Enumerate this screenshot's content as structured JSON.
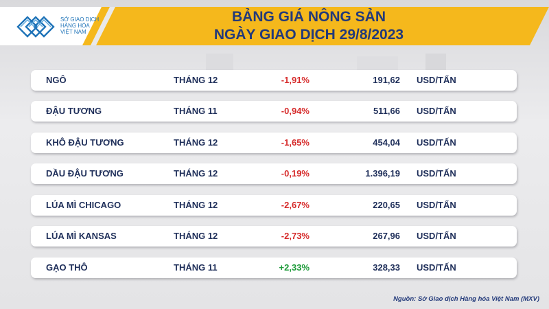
{
  "header": {
    "title_line1": "BẢNG GIÁ NÔNG SẢN",
    "title_line2": "NGÀY GIAO DỊCH 29/8/2023",
    "banner_color": "#f5b81c",
    "title_color": "#233a7a"
  },
  "logo": {
    "line1": "SỞ GIAO DỊCH",
    "line2": "HÀNG HÓA",
    "line3": "VIỆT NAM",
    "icon": "mxv-logo-icon",
    "color": "#1e73b8"
  },
  "rows": [
    {
      "name": "NGÔ",
      "month": "THÁNG 12",
      "change": "-1,91%",
      "direction": "down",
      "price": "191,62",
      "unit": "USD/TẤN"
    },
    {
      "name": "ĐẬU TƯƠNG",
      "month": "THÁNG 11",
      "change": "-0,94%",
      "direction": "down",
      "price": "511,66",
      "unit": "USD/TẤN"
    },
    {
      "name": "KHÔ ĐẬU TƯƠNG",
      "month": "THÁNG 12",
      "change": "-1,65%",
      "direction": "down",
      "price": "454,04",
      "unit": "USD/TẤN"
    },
    {
      "name": "DẦU ĐẬU TƯƠNG",
      "month": "THÁNG 12",
      "change": "-0,19%",
      "direction": "down",
      "price": "1.396,19",
      "unit": "USD/TẤN"
    },
    {
      "name": "LÚA MÌ CHICAGO",
      "month": "THÁNG 12",
      "change": "-2,67%",
      "direction": "down",
      "price": "220,65",
      "unit": "USD/TẤN"
    },
    {
      "name": "LÚA MÌ KANSAS",
      "month": "THÁNG 12",
      "change": "-2,73%",
      "direction": "down",
      "price": "267,96",
      "unit": "USD/TẤN"
    },
    {
      "name": "GẠO THÔ",
      "month": "THÁNG 11",
      "change": "+2,33%",
      "direction": "up",
      "price": "328,33",
      "unit": "USD/TẤN"
    }
  ],
  "colors": {
    "negative": "#d62b2b",
    "positive": "#1e9b3a"
  },
  "footer": {
    "source": "Nguồn: Sở Giao dịch Hàng hóa Việt Nam (MXV)"
  }
}
